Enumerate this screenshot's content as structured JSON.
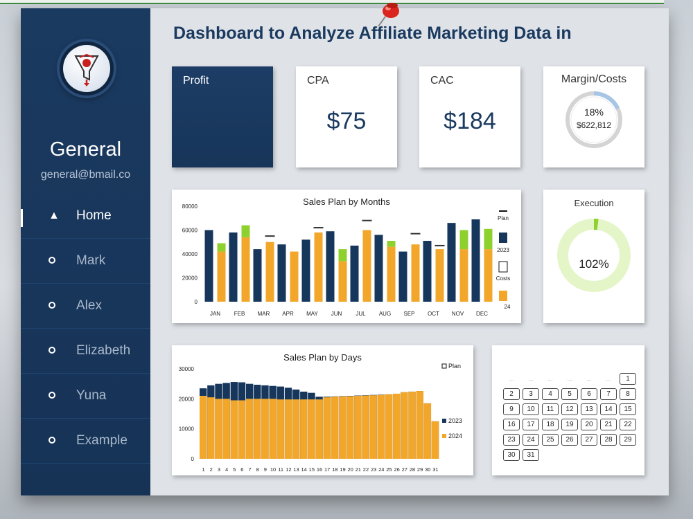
{
  "app": {
    "title": "Dashboard to Analyze Affiliate Marketing Data in"
  },
  "colors": {
    "sidebar": "#1b3a60",
    "navy": "#16365c",
    "orange": "#f2a72b",
    "green": "#8ed12e",
    "light_green": "#e4f5c8",
    "light_blue": "#a7c5e5"
  },
  "user": {
    "name": "General",
    "email": "general@bmail.co"
  },
  "nav": {
    "items": [
      {
        "label": "Home",
        "icon": "home-icon",
        "active": true
      },
      {
        "label": "Mark",
        "icon": "circle-icon",
        "active": false
      },
      {
        "label": "Alex",
        "icon": "circle-icon",
        "active": false
      },
      {
        "label": "Elizabeth",
        "icon": "circle-icon",
        "active": false
      },
      {
        "label": "Yuna",
        "icon": "circle-icon",
        "active": false
      },
      {
        "label": "Example",
        "icon": "circle-icon",
        "active": false
      }
    ]
  },
  "kpis": {
    "profit": {
      "label": "Profit"
    },
    "cpa": {
      "label": "CPA",
      "value": "$75"
    },
    "cac": {
      "label": "CAC",
      "value": "$184"
    },
    "margin": {
      "label": "Margin/Costs",
      "percent": "18%",
      "amount": "$622,812",
      "fraction": 0.18
    }
  },
  "execution": {
    "label": "Execution",
    "value": "102%",
    "fraction": 1.02
  },
  "chart_data": [
    {
      "type": "bar",
      "title": "Sales Plan by Months",
      "categories": [
        "JAN",
        "FEB",
        "MAR",
        "APR",
        "MAY",
        "JUN",
        "JUL",
        "AUG",
        "SEP",
        "OCT",
        "NOV",
        "DEC"
      ],
      "ylim": [
        0,
        80000
      ],
      "yticks": [
        "0",
        "20000",
        "40000",
        "60000",
        "80000"
      ],
      "legend_position": "right",
      "legend": [
        "Plan",
        "2023",
        "Costs",
        "24"
      ],
      "series": [
        {
          "name": "2023",
          "values": [
            60000,
            58000,
            44000,
            48000,
            52000,
            59000,
            47000,
            56000,
            42000,
            51000,
            66000,
            69000
          ]
        },
        {
          "name": "24",
          "values": [
            42000,
            54000,
            50000,
            42000,
            58000,
            34000,
            60000,
            46000,
            48000,
            44000,
            44000,
            44000
          ]
        },
        {
          "name": "Costs",
          "values": [
            7000,
            10000,
            0,
            0,
            0,
            10000,
            0,
            5000,
            0,
            0,
            16000,
            17000
          ]
        },
        {
          "name": "Plan",
          "values": [
            null,
            null,
            55000,
            null,
            62000,
            null,
            68000,
            null,
            57000,
            47000,
            null,
            null
          ]
        }
      ]
    },
    {
      "type": "bar",
      "title": "Sales Plan by Days",
      "categories": [
        "1",
        "2",
        "3",
        "4",
        "5",
        "6",
        "7",
        "8",
        "9",
        "10",
        "11",
        "12",
        "13",
        "14",
        "15",
        "16",
        "17",
        "18",
        "19",
        "20",
        "21",
        "22",
        "23",
        "24",
        "25",
        "26",
        "27",
        "28",
        "29",
        "30",
        "31"
      ],
      "ylim": [
        0,
        30000
      ],
      "yticks": [
        "0",
        "10000",
        "20000",
        "30000"
      ],
      "legend_position": "right",
      "legend": [
        "Plan",
        "2023",
        "2024"
      ],
      "series": [
        {
          "name": "2024",
          "values": [
            21000,
            20500,
            20000,
            20000,
            19500,
            19500,
            20000,
            20000,
            20000,
            20000,
            19800,
            19800,
            19800,
            19800,
            19800,
            19800,
            20500,
            20700,
            20800,
            20900,
            21000,
            21100,
            21200,
            21300,
            21500,
            21700,
            22200,
            22400,
            22600,
            18500,
            12500
          ]
        },
        {
          "name": "2023",
          "values": [
            23500,
            24500,
            25000,
            25300,
            25600,
            25500,
            25000,
            24700,
            24500,
            24300,
            24100,
            23700,
            23100,
            22400,
            22000,
            20700,
            20700,
            20800,
            20900,
            21000,
            21100,
            21200,
            21300,
            21400,
            21500,
            21700,
            22200,
            22400,
            22600,
            18500,
            12500
          ]
        }
      ]
    }
  ],
  "calendar": {
    "placeholder": "...",
    "leading_blanks": 6,
    "days": [
      "1",
      "2",
      "3",
      "4",
      "5",
      "6",
      "7",
      "8",
      "9",
      "10",
      "11",
      "12",
      "13",
      "14",
      "15",
      "16",
      "17",
      "18",
      "19",
      "20",
      "21",
      "22",
      "23",
      "24",
      "25",
      "26",
      "27",
      "28",
      "29",
      "30",
      "31"
    ]
  }
}
